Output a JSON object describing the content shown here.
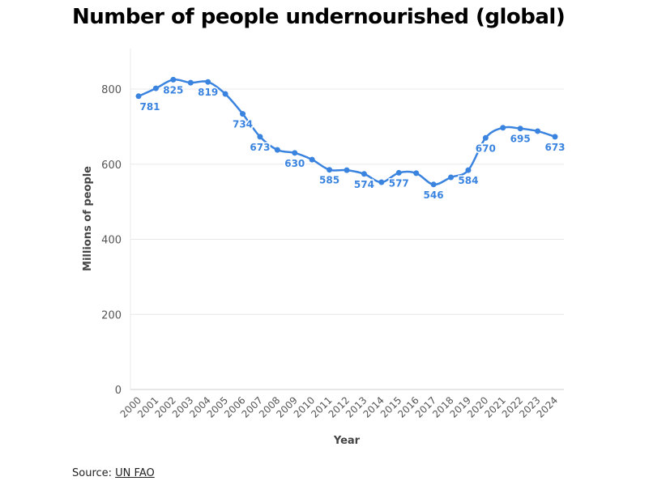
{
  "title": "Number of people undernourished (global)",
  "source": {
    "label": "Source:",
    "link_text": "UN FAO"
  },
  "colors": {
    "line": "#3a84e0",
    "grid": "#e8e8e8",
    "axis_text": "#555555"
  },
  "chart_data": {
    "type": "line",
    "title": "Number of people undernourished (global)",
    "xlabel": "Year",
    "ylabel": "Millions of people",
    "ylim": [
      0,
      800
    ],
    "yticks": [
      0,
      200,
      400,
      600,
      800
    ],
    "grid": true,
    "x": [
      2000,
      2001,
      2002,
      2003,
      2004,
      2005,
      2006,
      2007,
      2008,
      2009,
      2010,
      2011,
      2012,
      2013,
      2014,
      2015,
      2016,
      2017,
      2018,
      2019,
      2020,
      2021,
      2022,
      2023,
      2024
    ],
    "series": [
      {
        "name": "Millions of people",
        "values": [
          781,
          802,
          825,
          817,
          819,
          787,
          734,
          673,
          638,
          630,
          612,
          585,
          584,
          574,
          552,
          577,
          576,
          546,
          565,
          584,
          670,
          697,
          695,
          688,
          673
        ]
      }
    ],
    "data_labels": [
      {
        "year": 2000,
        "text": "781"
      },
      {
        "year": 2002,
        "text": "825"
      },
      {
        "year": 2004,
        "text": "819"
      },
      {
        "year": 2006,
        "text": "734"
      },
      {
        "year": 2007,
        "text": "673"
      },
      {
        "year": 2009,
        "text": "630"
      },
      {
        "year": 2011,
        "text": "585"
      },
      {
        "year": 2013,
        "text": "574"
      },
      {
        "year": 2015,
        "text": "577"
      },
      {
        "year": 2017,
        "text": "546"
      },
      {
        "year": 2019,
        "text": "584"
      },
      {
        "year": 2020,
        "text": "670"
      },
      {
        "year": 2022,
        "text": "695"
      },
      {
        "year": 2024,
        "text": "673"
      }
    ]
  }
}
